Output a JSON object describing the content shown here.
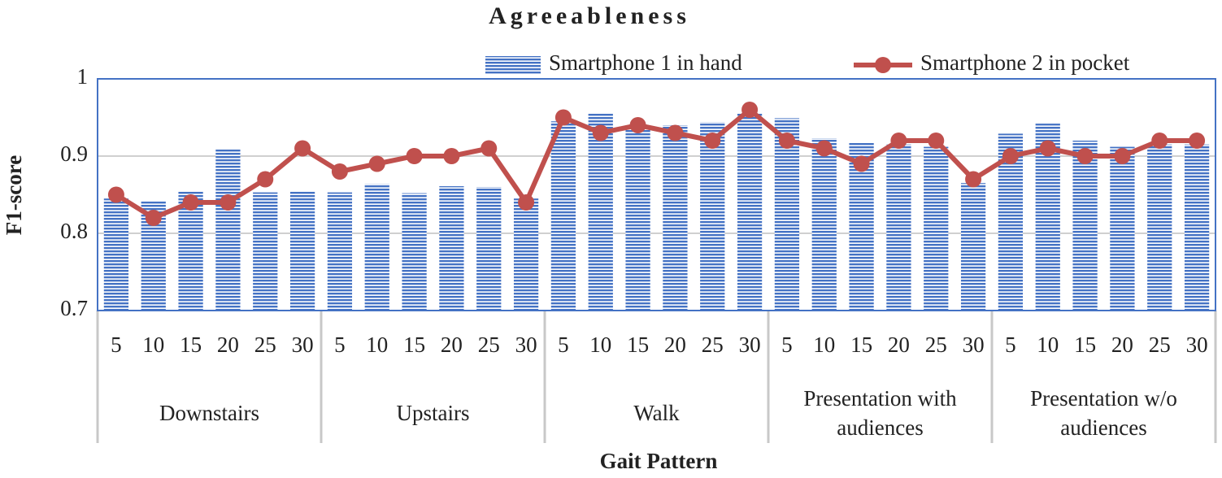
{
  "chart_data": {
    "type": "bar_line",
    "title": "Agreeableness",
    "y_label": "F1-score",
    "x_label": "Gait Pattern",
    "groups": [
      {
        "name": "Downstairs",
        "categories": [
          "5",
          "10",
          "15",
          "20",
          "25",
          "30"
        ]
      },
      {
        "name": "Upstairs",
        "categories": [
          "5",
          "10",
          "15",
          "20",
          "25",
          "30"
        ]
      },
      {
        "name": "Walk",
        "categories": [
          "5",
          "10",
          "15",
          "20",
          "25",
          "30"
        ]
      },
      {
        "name": "Presentation with audiences",
        "categories": [
          "5",
          "10",
          "15",
          "20",
          "25",
          "30"
        ]
      },
      {
        "name": "Presentation w/o audiences",
        "categories": [
          "5",
          "10",
          "15",
          "20",
          "25",
          "30"
        ]
      }
    ],
    "series": [
      {
        "name": "Smartphone 1 in hand",
        "type": "bar",
        "color": "#4472c4",
        "values": [
          0.845,
          0.842,
          0.855,
          0.91,
          0.853,
          0.855,
          0.853,
          0.864,
          0.852,
          0.861,
          0.86,
          0.845,
          0.945,
          0.956,
          0.94,
          0.94,
          0.944,
          0.955,
          0.949,
          0.923,
          0.917,
          0.915,
          0.912,
          0.865,
          0.929,
          0.942,
          0.92,
          0.912,
          0.915,
          0.915
        ]
      },
      {
        "name": "Smartphone 2 in pocket",
        "type": "line",
        "color": "#c0504d",
        "values": [
          0.85,
          0.82,
          0.84,
          0.84,
          0.87,
          0.91,
          0.88,
          0.89,
          0.9,
          0.9,
          0.91,
          0.84,
          0.95,
          0.93,
          0.94,
          0.93,
          0.92,
          0.96,
          0.92,
          0.91,
          0.89,
          0.92,
          0.92,
          0.87,
          0.9,
          0.91,
          0.9,
          0.9,
          0.92,
          0.92
        ]
      }
    ],
    "ylim": [
      0.7,
      1
    ],
    "yticks": [
      0.7,
      0.8,
      0.9,
      1
    ],
    "grid": true
  }
}
